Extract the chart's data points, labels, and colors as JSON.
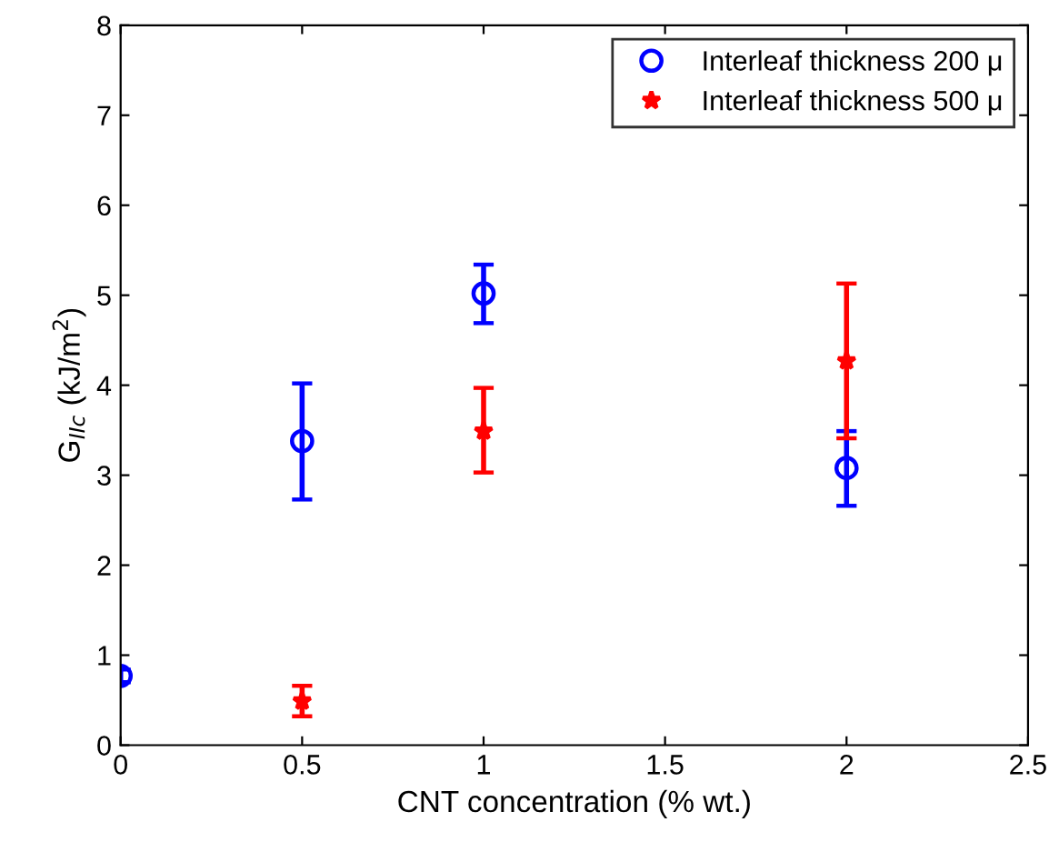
{
  "chart_data": {
    "type": "scatter",
    "xlabel": "CNT concentration (% wt.)",
    "ylabel": "G$_{IIc}$ (kJ/m$^{2}$)",
    "xlim": [
      0,
      2.5
    ],
    "xticks": [
      0,
      0.5,
      1,
      1.5,
      2,
      2.5
    ],
    "ylim": [
      0,
      8
    ],
    "yticks": [
      0,
      1,
      2,
      3,
      4,
      5,
      6,
      7,
      8
    ],
    "legend": "top right",
    "grid": false,
    "series": [
      {
        "name": "Interleaf thickness 200 μ",
        "color": "#0000ff",
        "marker": "circle",
        "x": [
          0,
          0.5,
          1,
          2
        ],
        "values": [
          0.77,
          3.38,
          5.02,
          3.08
        ],
        "errors": [
          [
            0.7,
            0.84
          ],
          [
            2.73,
            4.02
          ],
          [
            4.69,
            5.34
          ],
          [
            2.66,
            3.49
          ]
        ]
      },
      {
        "name": "Interleaf thickness 500 μ",
        "color": "#ff0000",
        "marker": "star",
        "x": [
          0.5,
          1,
          2
        ],
        "values": [
          0.49,
          3.49,
          4.27
        ],
        "errors": [
          [
            0.32,
            0.66
          ],
          [
            3.03,
            3.97
          ],
          [
            3.41,
            5.13
          ]
        ]
      }
    ]
  }
}
